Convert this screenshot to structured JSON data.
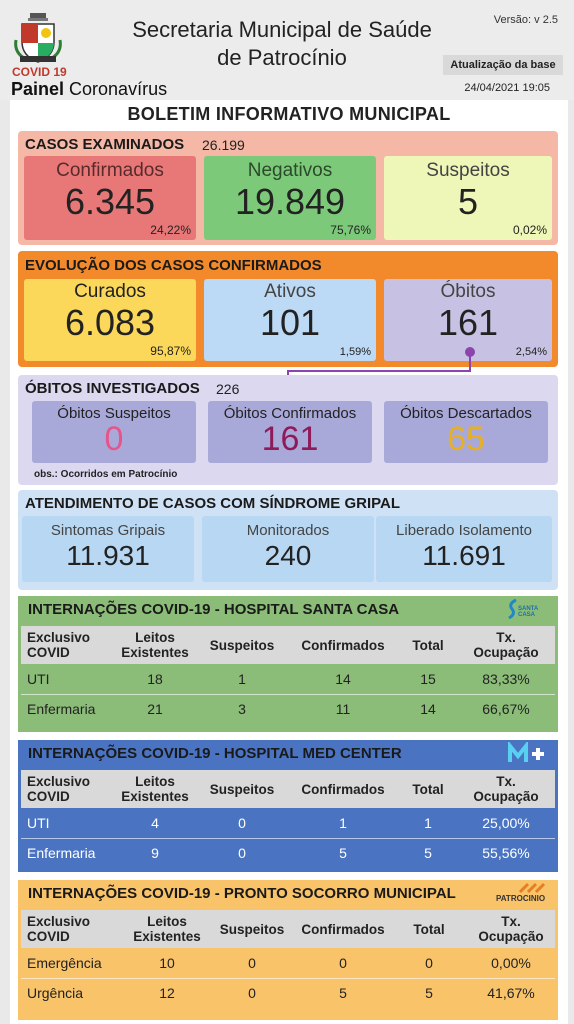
{
  "header": {
    "covid_label": "COVID 19",
    "painel_bold": "Painel",
    "painel_rest": " Coronavírus",
    "title_line1": "Secretaria Municipal de Saúde",
    "title_line2": "de Patrocínio",
    "versao": "Versão: v 2.5",
    "atualizacao": "Atualização da base",
    "datetime": "24/04/2021 19:05"
  },
  "boletim": "BOLETIM INFORMATIVO MUNICIPAL",
  "casos": {
    "title": "CASOS EXAMINADOS",
    "total": "26.199",
    "confirmados": {
      "label": "Confirmados",
      "value": "6.345",
      "pct": "24,22%"
    },
    "negativos": {
      "label": "Negativos",
      "value": "19.849",
      "pct": "75,76%"
    },
    "suspeitos": {
      "label": "Suspeitos",
      "value": "5",
      "pct": "0,02%"
    }
  },
  "evolucao": {
    "title": "EVOLUÇÃO DOS CASOS CONFIRMADOS",
    "curados": {
      "label": "Curados",
      "value": "6.083",
      "pct": "95,87%"
    },
    "ativos": {
      "label": "Ativos",
      "value": "101",
      "pct": "1,59%"
    },
    "obitos": {
      "label": "Óbitos",
      "value": "161",
      "pct": "2,54%"
    }
  },
  "obitos_inv": {
    "title": "ÓBITOS INVESTIGADOS",
    "total": "226",
    "suspeitos": {
      "label": "Óbitos Suspeitos",
      "value": "0"
    },
    "confirmados": {
      "label": "Óbitos Confirmados",
      "value": "161"
    },
    "descartados": {
      "label": "Óbitos Descartados",
      "value": "65"
    },
    "obs": "obs.: Ocorridos em Patrocínio"
  },
  "sindrome": {
    "title": "ATENDIMENTO DE CASOS COM SÍNDROME GRIPAL",
    "sintomas": {
      "label": "Sintomas Gripais",
      "value": "11.931"
    },
    "monitorados": {
      "label": "Monitorados",
      "value": "240"
    },
    "liberado": {
      "label": "Liberado Isolamento",
      "value": "11.691"
    }
  },
  "table_headers": {
    "c1a": "Exclusivo",
    "c1b": "COVID",
    "c2a": "Leitos",
    "c2b": "Existentes",
    "c3": "Suspeitos",
    "c4": "Confirmados",
    "c5": "Total",
    "c6a": "Tx.",
    "c6b": "Ocupação"
  },
  "santa_casa": {
    "title": "INTERNAÇÕES COVID-19 - HOSPITAL SANTA CASA",
    "logo_text": "SANTA CASA",
    "rows": [
      {
        "name": "UTI",
        "leitos": "18",
        "suspeitos": "1",
        "confirmados": "14",
        "total": "15",
        "tx": "83,33%"
      },
      {
        "name": "Enfermaria",
        "leitos": "21",
        "suspeitos": "3",
        "confirmados": "11",
        "total": "14",
        "tx": "66,67%"
      }
    ]
  },
  "med_center": {
    "title": "INTERNAÇÕES COVID-19 - HOSPITAL MED CENTER",
    "rows": [
      {
        "name": "UTI",
        "leitos": "4",
        "suspeitos": "0",
        "confirmados": "1",
        "total": "1",
        "tx": "25,00%"
      },
      {
        "name": "Enfermaria",
        "leitos": "9",
        "suspeitos": "0",
        "confirmados": "5",
        "total": "5",
        "tx": "55,56%"
      }
    ]
  },
  "pronto_socorro": {
    "title": "INTERNAÇÕES COVID-19 - PRONTO SOCORRO MUNICIPAL",
    "logo_text": "PATROCINIO",
    "rows": [
      {
        "name": "Emergência",
        "leitos": "10",
        "suspeitos": "0",
        "confirmados": "0",
        "total": "0",
        "tx": "0,00%"
      },
      {
        "name": "Urgência",
        "leitos": "12",
        "suspeitos": "0",
        "confirmados": "5",
        "total": "5",
        "tx": "41,67%"
      }
    ]
  },
  "colors": {
    "casos_bg": "#f5b8a6",
    "confirmados": "#e87878",
    "negativos": "#7dc97a",
    "suspeitos": "#eef6b8",
    "evolucao_bg": "#f28a2b",
    "curados": "#fcd85a",
    "ativos": "#bcd9f5",
    "obitos": "#c7c2e3",
    "obitos_inv_bg": "#dcd8f0",
    "obitos_box": "#a9a9d9",
    "sindrome_bg": "#cfe1f5",
    "sindrome_box": "#b7d7f3",
    "santa_casa": "#8bbd78",
    "med_center": "#4a74c2",
    "pronto_socorro": "#f9c36a"
  }
}
